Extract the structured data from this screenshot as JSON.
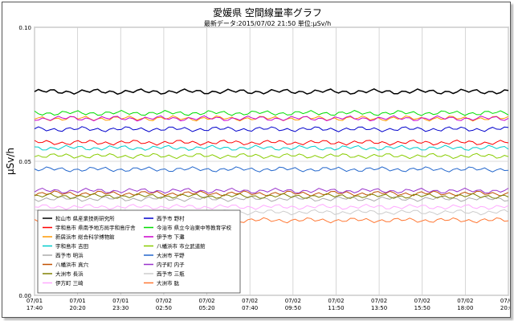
{
  "chart_data": {
    "type": "line",
    "title": "愛媛県 空間線量率グラフ",
    "subtitle": "最新データ:2015/07/02 21:50 単位:μSv/h",
    "ylabel": "μSv/h",
    "xlabel": "",
    "ylim": [
      0.0,
      0.1
    ],
    "yticks": [
      0.0,
      0.05,
      0.1
    ],
    "ytick_labels": [
      "0.00",
      "0.05",
      "0.10"
    ],
    "xticks": [
      {
        "date": "07/01",
        "time": "17:40"
      },
      {
        "date": "07/01",
        "time": "20:20"
      },
      {
        "date": "07/01",
        "time": "23:30"
      },
      {
        "date": "07/02",
        "time": "02:50"
      },
      {
        "date": "07/02",
        "time": "05:20"
      },
      {
        "date": "07/02",
        "time": "07:40"
      },
      {
        "date": "07/02",
        "time": "09:50"
      },
      {
        "date": "07/02",
        "time": "11:50"
      },
      {
        "date": "07/02",
        "time": "13:50"
      },
      {
        "date": "07/02",
        "time": "15:50"
      },
      {
        "date": "07/02",
        "time": "18:00"
      },
      {
        "date": "07/02",
        "time": "20:00"
      }
    ],
    "grid": true,
    "legend_position": "bottom-left",
    "series": [
      {
        "name": "松山市 県産業技術研究所",
        "color": "#000000",
        "value": 0.076
      },
      {
        "name": "宇和島市 県南予地方局宇和島庁舎",
        "color": "#ff0000",
        "value": 0.057
      },
      {
        "name": "新居浜市 総合科学博物館",
        "color": "#ff9900",
        "value": 0.066
      },
      {
        "name": "宇和島市 吉田",
        "color": "#00cccc",
        "value": 0.055
      },
      {
        "name": "西予市 明浜",
        "color": "#aaaaaa",
        "value": 0.036
      },
      {
        "name": "八幡浜市 真穴",
        "color": "#c05000",
        "value": 0.038
      },
      {
        "name": "大洲市 長浜",
        "color": "#808000",
        "value": 0.037
      },
      {
        "name": "伊方町 三崎",
        "color": "#ffaaff",
        "value": 0.033
      },
      {
        "name": "西予市 野村",
        "color": "#0000cc",
        "value": 0.062
      },
      {
        "name": "今治市 県立今治東中等教育学校",
        "color": "#00dd00",
        "value": 0.068
      },
      {
        "name": "伊予市 下灘",
        "color": "#cc00cc",
        "value": 0.066
      },
      {
        "name": "八幡浜市 市立武道館",
        "color": "#88cc00",
        "value": 0.052
      },
      {
        "name": "大洲市 平野",
        "color": "#2266cc",
        "value": 0.047
      },
      {
        "name": "内子町 内子",
        "color": "#9933cc",
        "value": 0.039
      },
      {
        "name": "西予市 三瓶",
        "color": "#cccccc",
        "value": 0.031
      },
      {
        "name": "大洲市 肱",
        "color": "#ff7733",
        "value": 0.028
      }
    ]
  }
}
